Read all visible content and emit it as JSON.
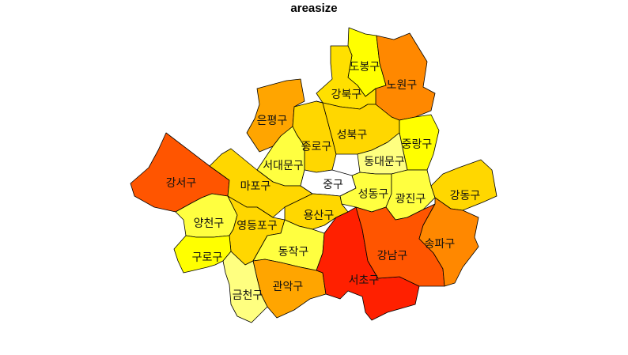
{
  "title": "areasize",
  "colors": {
    "lightest": "#FFFFFF",
    "pale_yellow": "#FFFF80",
    "yellow": "#FFFF00",
    "gold": "#FFD700",
    "amber": "#FFA500",
    "orange": "#FF8800",
    "dark_orange": "#FF5500",
    "red": "#FF2000"
  },
  "districts": [
    {
      "id": "dobong",
      "name": "도봉구",
      "color": "#FFFF00"
    },
    {
      "id": "nowon",
      "name": "노원구",
      "color": "#FF8800"
    },
    {
      "id": "gangbuk",
      "name": "강북구",
      "color": "#FFE000"
    },
    {
      "id": "eunpyeong",
      "name": "은평구",
      "color": "#FFA500"
    },
    {
      "id": "jongno",
      "name": "종로구",
      "color": "#FFD700"
    },
    {
      "id": "seongbuk",
      "name": "성북구",
      "color": "#FFD700"
    },
    {
      "id": "jungnang",
      "name": "중랑구",
      "color": "#FFFF00"
    },
    {
      "id": "dongdaemun",
      "name": "동대문구",
      "color": "#FFFF80"
    },
    {
      "id": "seodaemun",
      "name": "서대문구",
      "color": "#FFFF40"
    },
    {
      "id": "gangseo",
      "name": "강서구",
      "color": "#FF5500"
    },
    {
      "id": "mapo",
      "name": "마포구",
      "color": "#FFD700"
    },
    {
      "id": "jung",
      "name": "중구",
      "color": "#FFFFFF"
    },
    {
      "id": "seongdong",
      "name": "성동구",
      "color": "#FFFF40"
    },
    {
      "id": "gwangjin",
      "name": "광진구",
      "color": "#FFFF40"
    },
    {
      "id": "gangdong",
      "name": "강동구",
      "color": "#FFD700"
    },
    {
      "id": "yongsan",
      "name": "용산구",
      "color": "#FFD700"
    },
    {
      "id": "yangcheon",
      "name": "양천구",
      "color": "#FFFF40"
    },
    {
      "id": "yeongdeungpo",
      "name": "영등포구",
      "color": "#FFD700"
    },
    {
      "id": "guro",
      "name": "구로구",
      "color": "#FFFF00"
    },
    {
      "id": "dongjak",
      "name": "동작구",
      "color": "#FFFF40"
    },
    {
      "id": "gwanak",
      "name": "관악구",
      "color": "#FFA500"
    },
    {
      "id": "geumcheon",
      "name": "금천구",
      "color": "#FFFF80"
    },
    {
      "id": "seocho",
      "name": "서초구",
      "color": "#FF2000"
    },
    {
      "id": "gangnam",
      "name": "강남구",
      "color": "#FF5500"
    },
    {
      "id": "songpa",
      "name": "송파구",
      "color": "#FF8800"
    }
  ]
}
